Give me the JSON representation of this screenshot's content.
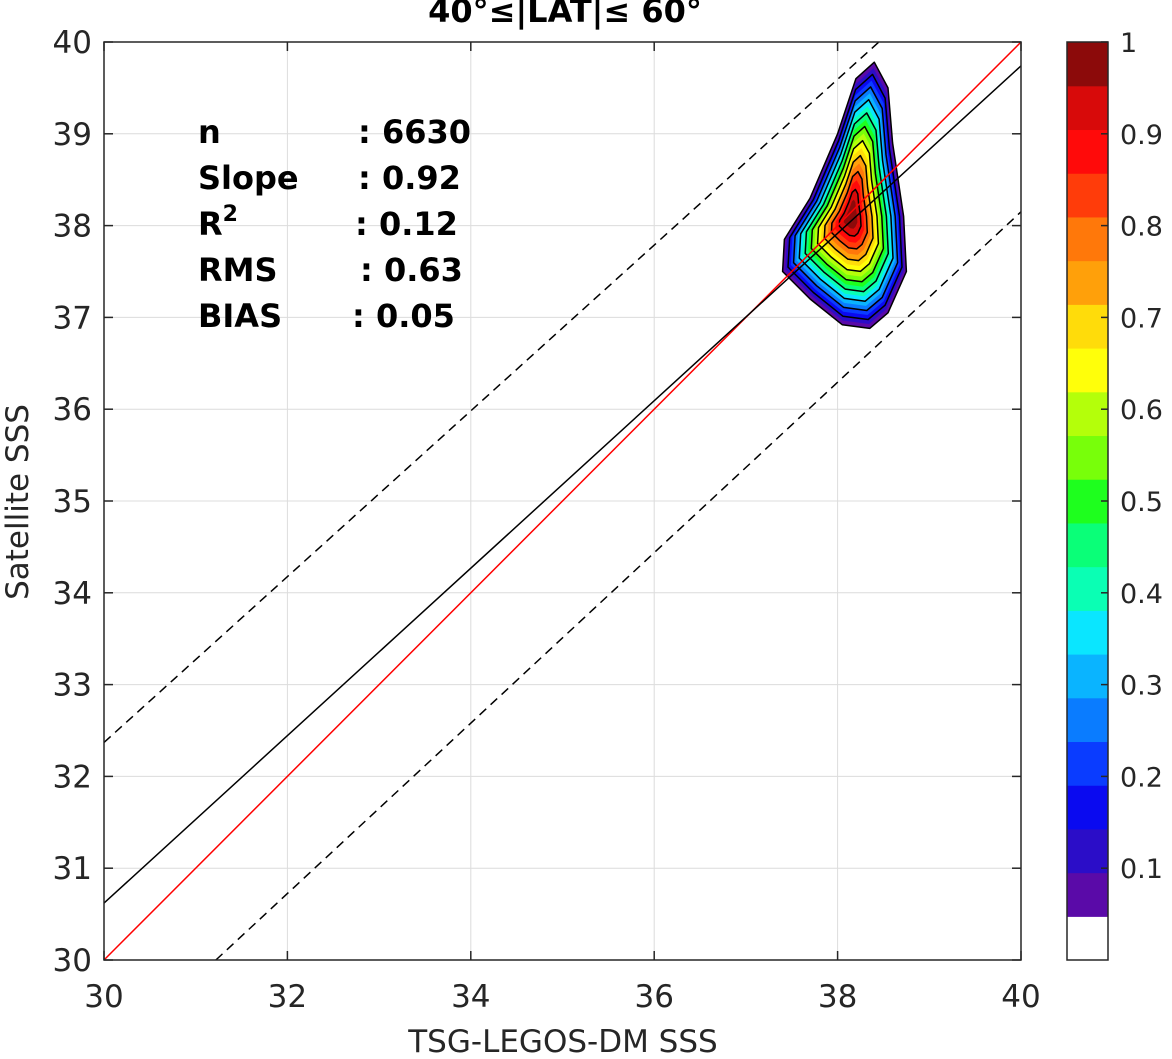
{
  "chart_data": {
    "type": "heatmap",
    "subtype": "density-contour scatter comparison",
    "title": "40°≤|LAT|≤ 60°",
    "xlabel": "TSG-LEGOS-DM SSS",
    "ylabel": "Satellite SSS",
    "xlim": [
      30,
      40
    ],
    "ylim": [
      30,
      40
    ],
    "x_ticks": [
      "30",
      "32",
      "34",
      "36",
      "38",
      "40"
    ],
    "y_ticks": [
      "30",
      "31",
      "32",
      "33",
      "34",
      "35",
      "36",
      "37",
      "38",
      "39",
      "40"
    ],
    "grid": true,
    "stats": [
      {
        "label": "n",
        "value": ": 6630"
      },
      {
        "label": "Slope",
        "value": ": 0.92"
      },
      {
        "label": "R",
        "sup": "2",
        "value": ": 0.12"
      },
      {
        "label": "RMS",
        "value": ": 0.63"
      },
      {
        "label": "BIAS",
        "value": ": 0.05"
      }
    ],
    "lines": [
      {
        "name": "one-to-one",
        "color": "#ff0000",
        "style": "solid",
        "points": [
          [
            30,
            30
          ],
          [
            40,
            40
          ]
        ]
      },
      {
        "name": "regression",
        "color": "#000000",
        "style": "solid",
        "points": [
          [
            30,
            30.62
          ],
          [
            40,
            39.74
          ]
        ]
      },
      {
        "name": "upper-bound",
        "color": "#000000",
        "style": "dashed",
        "points": [
          [
            30,
            32.37
          ],
          [
            38.45,
            40
          ]
        ]
      },
      {
        "name": "lower-bound",
        "color": "#000000",
        "style": "dashed",
        "points": [
          [
            31.22,
            30
          ],
          [
            40,
            38.15
          ]
        ]
      }
    ],
    "density": {
      "center": [
        38.15,
        38.1
      ],
      "levels": [
        0.05,
        0.15,
        0.25,
        0.35,
        0.45,
        0.55,
        0.65,
        0.75,
        0.85,
        0.95
      ],
      "outer_contour": [
        [
          38.4,
          39.78
        ],
        [
          38.55,
          39.5
        ],
        [
          38.6,
          38.9
        ],
        [
          38.72,
          38.1
        ],
        [
          38.75,
          37.5
        ],
        [
          38.55,
          37.05
        ],
        [
          38.35,
          36.88
        ],
        [
          38.05,
          36.92
        ],
        [
          37.7,
          37.2
        ],
        [
          37.4,
          37.5
        ],
        [
          37.42,
          37.85
        ],
        [
          37.7,
          38.3
        ],
        [
          38.0,
          39.0
        ],
        [
          38.2,
          39.6
        ]
      ],
      "colorbar": {
        "ticks": [
          "0.1",
          "0.2",
          "0.3",
          "0.4",
          "0.5",
          "0.6",
          "0.7",
          "0.8",
          "0.9",
          "1"
        ],
        "tick_values": [
          0.1,
          0.2,
          0.3,
          0.4,
          0.5,
          0.6,
          0.7,
          0.8,
          0.9,
          1.0
        ],
        "colors": [
          "#ffffff",
          "#5a0aa8",
          "#2b0dc8",
          "#0a0af0",
          "#0a3cff",
          "#0a7cff",
          "#0ab4ff",
          "#0ae6ff",
          "#0affb4",
          "#0aff78",
          "#1eff1e",
          "#78ff0a",
          "#b4ff0a",
          "#ffff0a",
          "#ffdc0a",
          "#ffa00a",
          "#ff780a",
          "#ff3c0a",
          "#ff0a0a",
          "#d80a0a",
          "#8c0a0a"
        ]
      }
    }
  }
}
